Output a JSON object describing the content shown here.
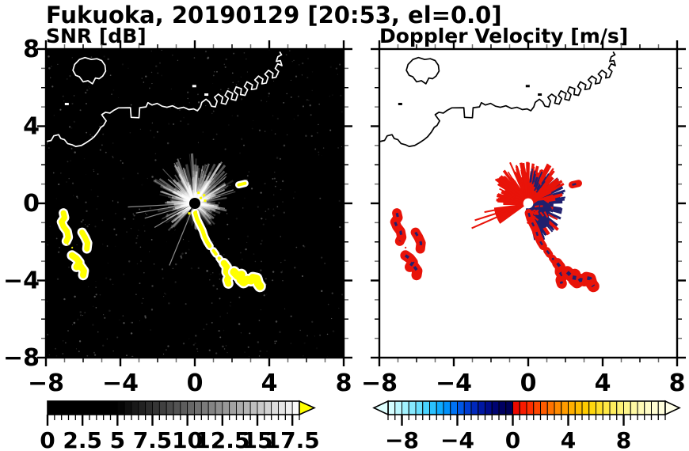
{
  "chart_data": {
    "type": "heatmap",
    "title": "Fukuoka, 20190129 [20:53, el=0.0]",
    "station": "Fukuoka",
    "date": "20190129",
    "time": "20:53",
    "elevation_deg": 0.0,
    "xlim": [
      -8,
      8
    ],
    "ylim": [
      -8,
      8
    ],
    "xticks": [
      -8,
      -4,
      0,
      4,
      8
    ],
    "yticks": [
      8,
      4,
      0,
      -4,
      -8
    ],
    "minor_tick_interval": 1,
    "x_tick_labels": [
      "−8",
      "−4",
      "0",
      "4",
      "8"
    ],
    "y_tick_labels": [
      "8",
      "4",
      "0",
      "−4",
      "−8"
    ],
    "panels": [
      {
        "id": "snr",
        "title": "SNR [dB]",
        "background": "#000000",
        "coast_color": "#ffffff",
        "saturated_echo_color": "#ffff00",
        "radar_center": [
          0,
          0
        ],
        "colorbar": {
          "range": [
            0,
            18
          ],
          "cell_step": 0.5,
          "tick_label_values": [
            0,
            2.5,
            5,
            7.5,
            10,
            12.5,
            15,
            17.5
          ],
          "tick_labels": [
            "0",
            "2.5",
            "5",
            "7.5",
            "10",
            "12.5",
            "15",
            "17.5"
          ],
          "major_tick_step": 2.5,
          "minor_tick_step": 0.5,
          "colormap": "grayscale, black below 5 dB ramping to white at 18 dB",
          "ramp_start_value": 5,
          "overflow_arrow_color": "#ffff00"
        }
      },
      {
        "id": "velocity",
        "title": "Doppler Velocity [m/s]",
        "background": "#ffffff",
        "coast_color": "#000000",
        "positive_color": "#e81309",
        "negative_color": "#20206e",
        "radar_center": [
          0,
          0
        ],
        "colorbar": {
          "range": [
            -9,
            11
          ],
          "cell_step": 0.5,
          "tick_label_values": [
            -8,
            -4,
            0,
            4,
            8
          ],
          "tick_labels": [
            "−8",
            "−4",
            "0",
            "4",
            "8"
          ],
          "major_tick_step": 4,
          "minor_tick_step": 0.5,
          "colormap_negative_stops": [
            "#e0ffff",
            "#b0f6ff",
            "#78e6ff",
            "#38ccff",
            "#00a0ff",
            "#0064f0",
            "#0030c8",
            "#000e96",
            "#000066",
            "#000050"
          ],
          "colormap_positive_stops": [
            "#e80000",
            "#ff2800",
            "#ff5a00",
            "#ff8c00",
            "#ffb400",
            "#ffd200",
            "#ffe63c",
            "#fff273",
            "#fff9a5",
            "#fffccb",
            "#ffffe0"
          ],
          "underflow_arrow_color": "#dfffff",
          "overflow_arrow_color": "#ffffe8"
        }
      }
    ],
    "coastline": {
      "mainland": [
        [
          -8,
          3.2
        ],
        [
          -7.72,
          3.26
        ],
        [
          -7.58,
          3.5
        ],
        [
          -7.32,
          3.56
        ],
        [
          -7.2,
          3.36
        ],
        [
          -7.0,
          3.3
        ],
        [
          -6.84,
          3.1
        ],
        [
          -6.6,
          3.04
        ],
        [
          -6.4,
          2.95
        ],
        [
          -6.1,
          3.0
        ],
        [
          -5.85,
          3.14
        ],
        [
          -5.6,
          3.3
        ],
        [
          -5.4,
          3.46
        ],
        [
          -5.2,
          3.7
        ],
        [
          -5.05,
          3.94
        ],
        [
          -4.9,
          4.04
        ],
        [
          -4.76,
          4.28
        ],
        [
          -4.92,
          4.48
        ],
        [
          -5.0,
          4.6
        ],
        [
          -4.8,
          4.72
        ],
        [
          -4.56,
          4.68
        ],
        [
          -4.36,
          4.82
        ],
        [
          -4.1,
          4.95
        ],
        [
          -3.46,
          4.96
        ],
        [
          -3.42,
          4.46
        ],
        [
          -3.0,
          4.44
        ],
        [
          -2.96,
          4.96
        ],
        [
          -2.62,
          5.0
        ],
        [
          -2.52,
          5.22
        ],
        [
          -2.3,
          5.1
        ],
        [
          -2.02,
          5.18
        ],
        [
          -1.76,
          5.04
        ],
        [
          -1.5,
          4.98
        ],
        [
          -1.2,
          5.06
        ],
        [
          -0.9,
          4.92
        ],
        [
          -0.6,
          4.98
        ],
        [
          -0.32,
          4.86
        ],
        [
          -0.06,
          4.9
        ],
        [
          0.14,
          4.8
        ],
        [
          0.3,
          5.0
        ],
        [
          0.38,
          5.24
        ],
        [
          0.6,
          5.4
        ],
        [
          0.78,
          5.26
        ],
        [
          0.9,
          5.04
        ],
        [
          1.1,
          5.0
        ],
        [
          1.2,
          5.3
        ],
        [
          1.06,
          5.5
        ],
        [
          1.26,
          5.66
        ],
        [
          1.5,
          5.5
        ],
        [
          1.42,
          5.2
        ],
        [
          1.66,
          5.14
        ],
        [
          1.8,
          5.44
        ],
        [
          1.62,
          5.6
        ],
        [
          1.76,
          5.84
        ],
        [
          2.04,
          5.7
        ],
        [
          1.96,
          5.4
        ],
        [
          2.2,
          5.34
        ],
        [
          2.3,
          5.64
        ],
        [
          2.12,
          5.8
        ],
        [
          2.22,
          6.04
        ],
        [
          2.5,
          5.94
        ],
        [
          2.46,
          5.64
        ],
        [
          2.7,
          5.6
        ],
        [
          2.84,
          5.9
        ],
        [
          2.66,
          6.06
        ],
        [
          2.8,
          6.3
        ],
        [
          3.1,
          6.14
        ],
        [
          3.04,
          5.9
        ],
        [
          3.3,
          5.94
        ],
        [
          3.4,
          6.24
        ],
        [
          3.22,
          6.4
        ],
        [
          3.42,
          6.6
        ],
        [
          3.66,
          6.44
        ],
        [
          3.6,
          6.2
        ],
        [
          3.84,
          6.24
        ],
        [
          3.94,
          6.54
        ],
        [
          3.76,
          6.7
        ],
        [
          3.96,
          6.9
        ],
        [
          4.2,
          6.74
        ],
        [
          4.16,
          6.5
        ],
        [
          4.36,
          6.54
        ],
        [
          4.5,
          6.84
        ],
        [
          4.32,
          7.0
        ],
        [
          4.46,
          7.24
        ],
        [
          4.68,
          7.14
        ],
        [
          4.6,
          7.4
        ],
        [
          4.38,
          7.36
        ],
        [
          4.46,
          7.6
        ],
        [
          4.66,
          7.7
        ],
        [
          4.56,
          7.86
        ]
      ],
      "island": [
        [
          -6.55,
          6.9
        ],
        [
          -6.46,
          7.2
        ],
        [
          -6.2,
          7.46
        ],
        [
          -5.9,
          7.56
        ],
        [
          -5.56,
          7.46
        ],
        [
          -5.26,
          7.5
        ],
        [
          -5.0,
          7.4
        ],
        [
          -4.83,
          7.16
        ],
        [
          -4.79,
          6.86
        ],
        [
          -4.95,
          6.6
        ],
        [
          -5.14,
          6.46
        ],
        [
          -5.34,
          6.5
        ],
        [
          -5.5,
          6.2
        ],
        [
          -5.74,
          6.36
        ],
        [
          -6.0,
          6.3
        ],
        [
          -6.2,
          6.56
        ],
        [
          -6.4,
          6.64
        ],
        [
          -6.55,
          6.9
        ]
      ],
      "islets": [
        [
          -6.9,
          5.15
        ],
        [
          -0.05,
          6.08
        ],
        [
          0.6,
          5.64
        ]
      ]
    },
    "echo_chains": [
      {
        "name": "se-chain-1",
        "points": [
          [
            0.02,
            -0.5
          ],
          [
            0.12,
            -0.82
          ],
          [
            0.26,
            -1.1
          ],
          [
            0.42,
            -1.42
          ],
          [
            0.52,
            -1.72
          ],
          [
            0.66,
            -2.0
          ],
          [
            0.8,
            -2.22
          ]
        ],
        "width": 5
      },
      {
        "name": "se-chain-2",
        "points": [
          [
            1.0,
            -2.45
          ],
          [
            1.14,
            -2.64
          ]
        ],
        "width": 4
      },
      {
        "name": "se-chain-3",
        "points": [
          [
            1.3,
            -2.84
          ],
          [
            1.42,
            -3.0
          ]
        ],
        "width": 4
      },
      {
        "name": "se-chain-4",
        "points": [
          [
            1.56,
            -3.1
          ],
          [
            1.72,
            -3.3
          ],
          [
            1.7,
            -3.56
          ],
          [
            1.84,
            -3.76
          ],
          [
            1.74,
            -3.98
          ],
          [
            1.8,
            -4.16
          ]
        ],
        "width": 8
      },
      {
        "name": "se-chain-5",
        "points": [
          [
            2.1,
            -3.56
          ],
          [
            2.3,
            -3.76
          ],
          [
            2.5,
            -3.7
          ],
          [
            2.46,
            -3.96
          ],
          [
            2.62,
            -4.1
          ],
          [
            2.82,
            -3.96
          ],
          [
            3.02,
            -4.0
          ],
          [
            3.12,
            -3.86
          ],
          [
            3.32,
            -3.9
          ],
          [
            3.4,
            -4.16
          ],
          [
            3.5,
            -4.3
          ]
        ],
        "width": 10
      },
      {
        "name": "west-blob-1",
        "points": [
          [
            -7.06,
            -0.5
          ],
          [
            -7.0,
            -0.74
          ],
          [
            -7.16,
            -0.96
          ],
          [
            -7.06,
            -1.2
          ],
          [
            -6.86,
            -1.46
          ],
          [
            -6.8,
            -1.76
          ],
          [
            -6.9,
            -1.96
          ]
        ],
        "width": 7
      },
      {
        "name": "west-blob-2",
        "points": [
          [
            -6.06,
            -1.5
          ],
          [
            -5.9,
            -1.76
          ],
          [
            -5.76,
            -2.06
          ],
          [
            -5.8,
            -2.36
          ]
        ],
        "width": 7
      },
      {
        "name": "west-blob-3",
        "points": [
          [
            -6.6,
            -2.7
          ],
          [
            -6.36,
            -2.86
          ],
          [
            -6.2,
            -3.06
          ],
          [
            -6.36,
            -3.3
          ],
          [
            -6.14,
            -3.26
          ],
          [
            -5.96,
            -3.5
          ],
          [
            -6.0,
            -3.72
          ]
        ],
        "width": 8
      },
      {
        "name": "ne-dash",
        "points": [
          [
            2.36,
            0.96
          ],
          [
            2.7,
            1.04
          ]
        ],
        "width": 4
      },
      {
        "name": "west-dotted-trail",
        "points": [
          [
            -6.86,
            -2.1
          ],
          [
            -6.7,
            -2.2
          ],
          [
            -6.56,
            -2.32
          ]
        ],
        "width": 2,
        "dotted": true
      }
    ],
    "snr_render": {
      "seed": 7,
      "noise_count": 550,
      "glow_radii": [
        1.15,
        0.5
      ],
      "center_disk_radius": 0.3,
      "streak_sectors": [
        {
          "a0": 15,
          "a1": 175,
          "n": 130,
          "rmin": 0.5,
          "rmax": 2.6,
          "omin": 0.12,
          "omax": 0.6
        },
        {
          "a0": 175,
          "a1": 232,
          "n": 38,
          "rmin": 0.4,
          "rmax": 2.1,
          "omin": 0.1,
          "omax": 0.5
        },
        {
          "a0": 256,
          "a1": 345,
          "n": 42,
          "rmin": 0.3,
          "rmax": 1.6,
          "omin": 0.08,
          "omax": 0.4
        },
        {
          "a0": 345,
          "a1": 375,
          "n": 22,
          "rmin": 0.3,
          "rmax": 1.9,
          "omin": 0.1,
          "omax": 0.5
        }
      ],
      "rays": [
        {
          "a": 183,
          "r": 3.6
        },
        {
          "a": 189,
          "r": 3.2
        },
        {
          "a": 196,
          "r": 2.8
        },
        {
          "a": 247,
          "r": 3.5
        },
        {
          "a": 210,
          "r": 2.5
        }
      ],
      "dark_wedges": [
        {
          "a0": 233,
          "a1": 241,
          "r": 3.2
        },
        {
          "a0": 245,
          "a1": 252,
          "r": 3.4
        },
        {
          "a0": 205.5,
          "a1": 208,
          "r": 2.8
        }
      ],
      "yellow_specks": [
        [
          0.32,
          0.28
        ],
        [
          0.5,
          0.42
        ],
        [
          -0.3,
          -0.52
        ],
        [
          0.06,
          -0.44
        ],
        [
          0.55,
          0.14
        ],
        [
          0.2,
          0.55
        ]
      ]
    },
    "vel_render": {
      "seed": 13,
      "center_disk_radius": 0.27,
      "pos_sectors": [
        {
          "a0": 35,
          "a1": 150,
          "n": 115,
          "rmin": 0.4,
          "rmax": 2.35
        },
        {
          "a0": 150,
          "a1": 186,
          "n": 30,
          "rmin": 0.4,
          "rmax": 1.9
        },
        {
          "a0": -80,
          "a1": 40,
          "n": 30,
          "rmin": 0.8,
          "rmax": 2.25
        }
      ],
      "neg_sectors": [
        {
          "a0": -80,
          "a1": 40,
          "n": 135,
          "rmin": 0.3,
          "rmax": 2.1
        },
        {
          "a0": 40,
          "a1": 95,
          "n": 18,
          "rmin": 0.6,
          "rmax": 1.7
        }
      ],
      "wedge": {
        "a0": 187,
        "a1": 216,
        "r": 1.85
      },
      "rays": [
        {
          "a": 191,
          "r": 2.4
        },
        {
          "a": 197,
          "r": 3.0
        },
        {
          "a": 203,
          "r": 3.3
        }
      ],
      "blob": {
        "cx": 0.52,
        "cy": -0.58,
        "rmin": 0.45,
        "rmax": 0.9,
        "n": 16
      },
      "red_speck_count": 15,
      "navy_speck_count": 18
    }
  }
}
